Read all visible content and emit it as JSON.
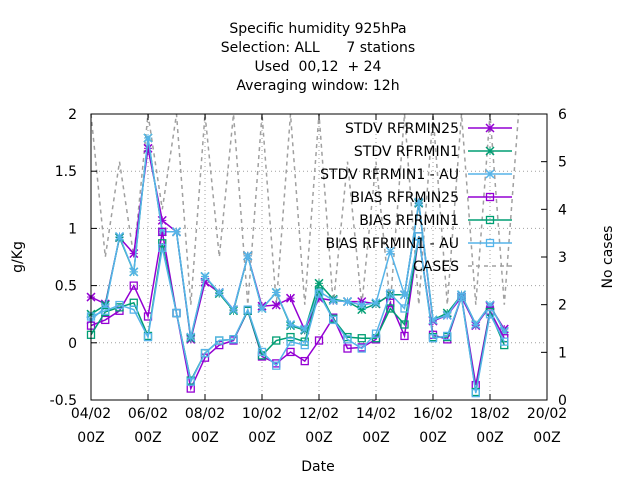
{
  "chart_data": {
    "type": "line",
    "title_lines": [
      "Specific humidity 925hPa",
      "Selection: ALL      7 stations",
      "Used  00,12  + 24",
      "Averaging window: 12h"
    ],
    "xlabel": "Date",
    "ylabel": "g/Kg",
    "y2label": "No cases",
    "xlim": [
      0,
      32
    ],
    "ylim": [
      -0.5,
      2
    ],
    "y2lim": [
      0,
      6
    ],
    "grid": true,
    "legend_position": "top-right",
    "x_ticks": [
      {
        "x": 0,
        "line1": "04/02",
        "line2": "00Z"
      },
      {
        "x": 4,
        "line1": "06/02",
        "line2": "00Z"
      },
      {
        "x": 8,
        "line1": "08/02",
        "line2": "00Z"
      },
      {
        "x": 12,
        "line1": "10/02",
        "line2": "00Z"
      },
      {
        "x": 16,
        "line1": "12/02",
        "line2": "00Z"
      },
      {
        "x": 20,
        "line1": "14/02",
        "line2": "00Z"
      },
      {
        "x": 24,
        "line1": "16/02",
        "line2": "00Z"
      },
      {
        "x": 28,
        "line1": "18/02",
        "line2": "00Z"
      },
      {
        "x": 32,
        "line1": "20/02",
        "line2": "00Z"
      }
    ],
    "y_ticks": [
      -0.5,
      0,
      0.5,
      1,
      1.5,
      2
    ],
    "y_tick_labels": [
      "-0.5",
      "0",
      "0.5",
      "1",
      "1.5",
      "2"
    ],
    "y2_ticks": [
      0,
      1,
      2,
      3,
      4,
      5,
      6
    ],
    "y2_tick_labels": [
      "0",
      "1",
      "2",
      "3",
      "4",
      "5",
      "6"
    ],
    "x": [
      0,
      1,
      2,
      3,
      4,
      5,
      6,
      7,
      8,
      9,
      10,
      11,
      12,
      13,
      14,
      15,
      16,
      17,
      18,
      19,
      20,
      21,
      22,
      23,
      24,
      25,
      26,
      27,
      28,
      29,
      30
    ],
    "series": [
      {
        "name": "STDV RFRMIN25",
        "color": "#9400d3",
        "marker": "x",
        "dash": "solid",
        "axis": "y",
        "values": [
          0.4,
          0.34,
          0.92,
          0.78,
          1.7,
          1.07,
          0.97,
          0.03,
          0.53,
          0.44,
          0.29,
          0.76,
          0.32,
          0.33,
          0.39,
          0.11,
          0.39,
          0.37,
          0.36,
          0.36,
          0.34,
          0.42,
          0.42,
          1.22,
          0.19,
          0.24,
          0.4,
          0.15,
          0.32,
          0.12,
          null
        ]
      },
      {
        "name": "STDV RFRMIN1",
        "color": "#009e73",
        "marker": "x",
        "dash": "solid",
        "axis": "y",
        "values": [
          0.25,
          0.33,
          0.92,
          0.62,
          1.79,
          0.97,
          0.97,
          0.04,
          0.58,
          0.43,
          0.28,
          0.76,
          0.3,
          0.44,
          0.15,
          0.11,
          0.52,
          0.38,
          0.36,
          0.29,
          0.34,
          0.42,
          0.42,
          1.22,
          0.2,
          0.26,
          0.42,
          0.16,
          0.33,
          0.1,
          null
        ]
      },
      {
        "name": "STDV RFRMIN1 - AU",
        "color": "#56b4e9",
        "marker": "x",
        "dash": "solid",
        "axis": "y",
        "values": [
          0.2,
          0.31,
          0.93,
          0.62,
          1.79,
          0.97,
          0.97,
          0.05,
          0.58,
          0.44,
          0.29,
          0.76,
          0.3,
          0.44,
          0.16,
          0.12,
          0.45,
          0.37,
          0.36,
          0.33,
          0.35,
          0.8,
          0.42,
          1.23,
          0.2,
          0.24,
          0.42,
          0.16,
          0.33,
          0.1,
          null
        ]
      },
      {
        "name": "BIAS RFRMIN25",
        "color": "#9400d3",
        "marker": "square",
        "dash": "solid",
        "axis": "y",
        "values": [
          0.15,
          0.2,
          0.28,
          0.5,
          0.23,
          0.97,
          0.26,
          -0.4,
          -0.13,
          -0.02,
          0.02,
          0.28,
          -0.12,
          -0.18,
          -0.08,
          -0.16,
          0.02,
          0.22,
          -0.05,
          -0.04,
          0.03,
          0.35,
          0.06,
          0.93,
          0.07,
          0.03,
          0.4,
          -0.37,
          0.28,
          0.04,
          null
        ]
      },
      {
        "name": "BIAS RFRMIN1",
        "color": "#009e73",
        "marker": "square",
        "dash": "solid",
        "axis": "y",
        "values": [
          0.07,
          0.27,
          0.31,
          0.35,
          0.06,
          0.87,
          0.26,
          -0.33,
          -0.09,
          0.02,
          0.03,
          0.28,
          -0.11,
          0.02,
          0.05,
          0.01,
          0.45,
          0.21,
          0.05,
          0.04,
          0.04,
          0.3,
          0.16,
          0.93,
          0.05,
          0.05,
          0.4,
          -0.43,
          0.27,
          -0.02,
          null
        ]
      },
      {
        "name": "BIAS RFRMIN1 - AU",
        "color": "#56b4e9",
        "marker": "square",
        "dash": "solid",
        "axis": "y",
        "values": [
          0.23,
          0.28,
          0.33,
          0.29,
          0.05,
          0.83,
          0.26,
          -0.34,
          -0.09,
          0.02,
          0.03,
          0.29,
          -0.08,
          -0.2,
          0.01,
          -0.02,
          0.43,
          0.2,
          0.03,
          -0.05,
          0.08,
          0.43,
          0.3,
          0.93,
          0.04,
          0.06,
          0.4,
          -0.44,
          0.25,
          0.01,
          null
        ]
      },
      {
        "name": "CASES",
        "color": "#a0a0a0",
        "marker": "none",
        "dash": "dashed",
        "axis": "y2",
        "values": [
          6,
          3,
          5,
          3,
          6,
          4,
          6,
          2,
          6,
          3,
          6,
          2,
          6,
          2,
          6,
          2,
          6,
          2,
          5,
          2,
          5,
          2,
          6,
          2,
          6,
          2,
          6,
          2,
          6,
          2,
          6
        ]
      }
    ]
  }
}
